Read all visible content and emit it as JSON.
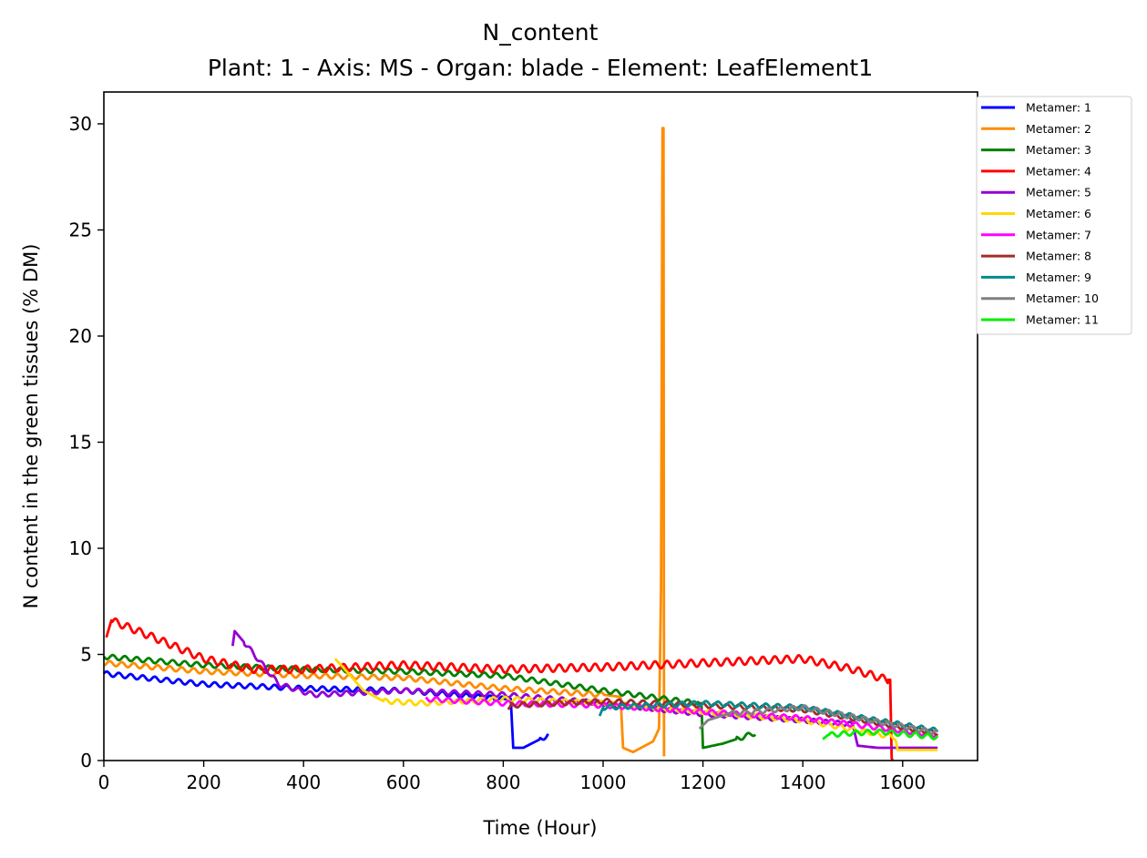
{
  "chart_data": {
    "type": "line",
    "title": "N_content",
    "subtitle": "Plant: 1 - Axis: MS - Organ: blade - Element: LeafElement1",
    "xlabel": "Time (Hour)",
    "ylabel": "N content in the green tissues (% DM)",
    "xlim": [
      0,
      1750
    ],
    "ylim": [
      0,
      31.5
    ],
    "xticks": [
      0,
      200,
      400,
      600,
      800,
      1000,
      1200,
      1400,
      1600
    ],
    "yticks": [
      0,
      5,
      10,
      15,
      20,
      25,
      30
    ],
    "grid": false,
    "legend_position": "upper-right-outside",
    "series": [
      {
        "name": "Metamer: 1",
        "color": "#0000ff",
        "start": 0,
        "end": 890,
        "mode": "decline",
        "points": [
          [
            0,
            4.1
          ],
          [
            200,
            3.6
          ],
          [
            400,
            3.4
          ],
          [
            600,
            3.3
          ],
          [
            800,
            2.9
          ],
          [
            815,
            2.9
          ],
          [
            820,
            0.6
          ],
          [
            840,
            0.6
          ],
          [
            890,
            1.2
          ]
        ]
      },
      {
        "name": "Metamer: 2",
        "color": "#ff8c00",
        "start": 0,
        "end": 1122,
        "mode": "decline",
        "points": [
          [
            0,
            4.6
          ],
          [
            200,
            4.2
          ],
          [
            400,
            4.0
          ],
          [
            600,
            3.9
          ],
          [
            800,
            3.4
          ],
          [
            1000,
            3.1
          ],
          [
            1035,
            3.0
          ],
          [
            1040,
            0.6
          ],
          [
            1060,
            0.4
          ],
          [
            1100,
            0.9
          ],
          [
            1112,
            1.5
          ],
          [
            1116,
            8.0
          ],
          [
            1119,
            29.8
          ],
          [
            1121,
            29.8
          ],
          [
            1122,
            0.2
          ]
        ]
      },
      {
        "name": "Metamer: 3",
        "color": "#008000",
        "start": 0,
        "end": 1305,
        "mode": "decline",
        "points": [
          [
            0,
            4.9
          ],
          [
            200,
            4.5
          ],
          [
            400,
            4.3
          ],
          [
            600,
            4.2
          ],
          [
            800,
            4.0
          ],
          [
            1000,
            3.3
          ],
          [
            1190,
            2.7
          ],
          [
            1197,
            2.7
          ],
          [
            1200,
            0.6
          ],
          [
            1240,
            0.8
          ],
          [
            1305,
            1.3
          ]
        ]
      },
      {
        "name": "Metamer: 4",
        "color": "#ff0000",
        "start": 5,
        "end": 1580,
        "mode": "rise",
        "points": [
          [
            5,
            5.8
          ],
          [
            15,
            6.6
          ],
          [
            100,
            5.8
          ],
          [
            200,
            4.8
          ],
          [
            300,
            4.3
          ],
          [
            400,
            4.3
          ],
          [
            600,
            4.5
          ],
          [
            800,
            4.3
          ],
          [
            1000,
            4.4
          ],
          [
            1200,
            4.6
          ],
          [
            1400,
            4.8
          ],
          [
            1500,
            4.3
          ],
          [
            1570,
            3.8
          ],
          [
            1575,
            3.8
          ],
          [
            1578,
            0.1
          ],
          [
            1580,
            0
          ]
        ]
      },
      {
        "name": "Metamer: 5",
        "color": "#9400d3",
        "start": 258,
        "end": 1670,
        "mode": "decline",
        "points": [
          [
            258,
            5.4
          ],
          [
            262,
            6.1
          ],
          [
            280,
            5.6
          ],
          [
            350,
            3.6
          ],
          [
            420,
            3.1
          ],
          [
            600,
            3.3
          ],
          [
            800,
            3.1
          ],
          [
            1000,
            2.7
          ],
          [
            1200,
            2.2
          ],
          [
            1400,
            1.9
          ],
          [
            1500,
            1.7
          ],
          [
            1510,
            0.7
          ],
          [
            1550,
            0.6
          ],
          [
            1670,
            0.6
          ]
        ]
      },
      {
        "name": "Metamer: 6",
        "color": "#ffd700",
        "start": 463,
        "end": 1670,
        "mode": "decline",
        "points": [
          [
            463,
            4.8
          ],
          [
            475,
            4.5
          ],
          [
            520,
            3.3
          ],
          [
            560,
            2.8
          ],
          [
            640,
            2.7
          ],
          [
            800,
            2.9
          ],
          [
            1000,
            2.7
          ],
          [
            1200,
            2.3
          ],
          [
            1400,
            1.9
          ],
          [
            1585,
            1.1
          ],
          [
            1590,
            0.5
          ],
          [
            1670,
            0.5
          ]
        ]
      },
      {
        "name": "Metamer: 7",
        "color": "#ff00ff",
        "start": 645,
        "end": 1670,
        "mode": "decline",
        "points": [
          [
            645,
            2.9
          ],
          [
            800,
            2.7
          ],
          [
            1000,
            2.6
          ],
          [
            1200,
            2.3
          ],
          [
            1400,
            2.0
          ],
          [
            1670,
            1.2
          ]
        ]
      },
      {
        "name": "Metamer: 8",
        "color": "#a52a2a",
        "start": 810,
        "end": 1670,
        "mode": "decline",
        "points": [
          [
            810,
            2.4
          ],
          [
            815,
            2.6
          ],
          [
            1000,
            2.8
          ],
          [
            1200,
            2.6
          ],
          [
            1400,
            2.4
          ],
          [
            1670,
            1.3
          ]
        ]
      },
      {
        "name": "Metamer: 9",
        "color": "#008b8b",
        "start": 993,
        "end": 1670,
        "mode": "decline",
        "points": [
          [
            993,
            2.1
          ],
          [
            1000,
            2.5
          ],
          [
            1200,
            2.7
          ],
          [
            1400,
            2.5
          ],
          [
            1670,
            1.4
          ]
        ]
      },
      {
        "name": "Metamer: 10",
        "color": "#808080",
        "start": 1193,
        "end": 1670,
        "mode": "decline",
        "points": [
          [
            1193,
            1.5
          ],
          [
            1210,
            1.9
          ],
          [
            1250,
            2.2
          ],
          [
            1400,
            2.5
          ],
          [
            1670,
            1.3
          ]
        ]
      },
      {
        "name": "Metamer: 11",
        "color": "#00ee00",
        "start": 1440,
        "end": 1670,
        "mode": "decline",
        "points": [
          [
            1440,
            1.0
          ],
          [
            1450,
            1.2
          ],
          [
            1500,
            1.3
          ],
          [
            1560,
            1.35
          ],
          [
            1670,
            1.1
          ]
        ]
      }
    ]
  }
}
